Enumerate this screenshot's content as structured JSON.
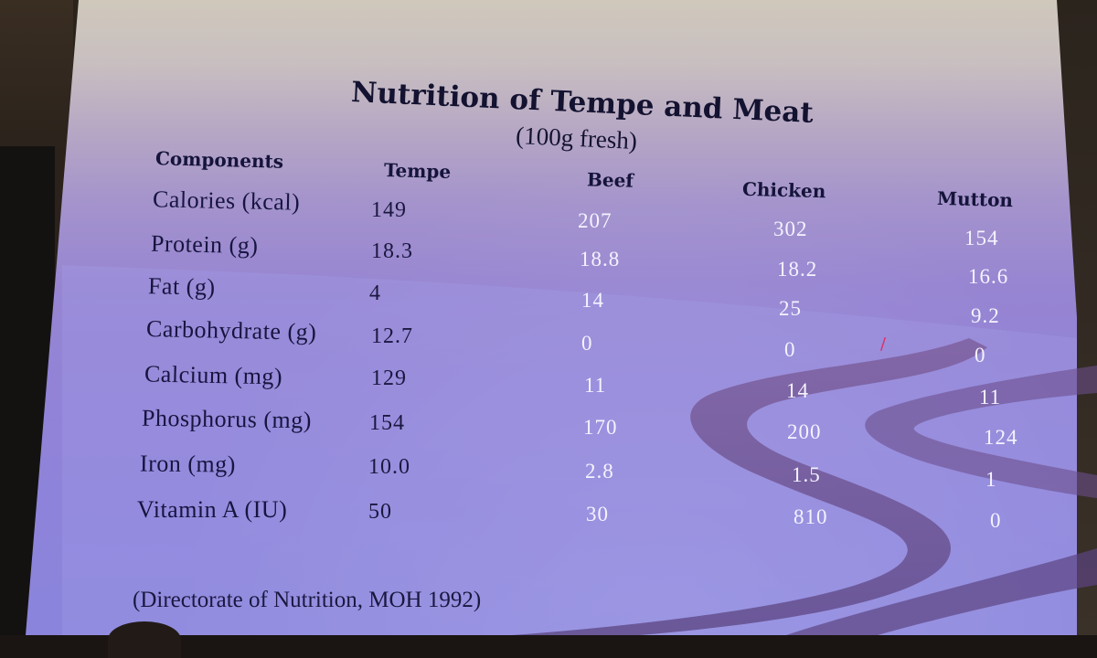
{
  "slide": {
    "title": "Nutrition of Tempe and Meat",
    "subtitle": "(100g fresh)",
    "columns": [
      "Components",
      "Tempe",
      "Beef",
      "Chicken",
      "Mutton"
    ],
    "rows": [
      {
        "label": "Calories (kcal)",
        "values": [
          "149",
          "207",
          "302",
          "154"
        ]
      },
      {
        "label": "Protein (g)",
        "values": [
          "18.3",
          "18.8",
          "18.2",
          "16.6"
        ]
      },
      {
        "label": "Fat (g)",
        "values": [
          "4",
          "14",
          "25",
          "9.2"
        ]
      },
      {
        "label": "Carbohydrate (g)",
        "values": [
          "12.7",
          "0",
          "0",
          "0"
        ]
      },
      {
        "label": "Calcium (mg)",
        "values": [
          "129",
          "11",
          "14",
          "11"
        ]
      },
      {
        "label": "Phosphorus (mg)",
        "values": [
          "154",
          "170",
          "200",
          "124"
        ]
      },
      {
        "label": "Iron (mg)",
        "values": [
          "10.0",
          "2.8",
          "1.5",
          "1"
        ]
      },
      {
        "label": "Vitamin A (IU)",
        "values": [
          "50",
          "30",
          "810",
          "0"
        ]
      }
    ],
    "source": "(Directorate of Nutrition, MOH 1992)"
  },
  "colors": {
    "slide_top": "#cfc8bb",
    "slide_bottom": "#8a84dc",
    "swirl": "#6d4f8c",
    "text_dark": "#15143a",
    "text_light": "#f4f3ff"
  }
}
